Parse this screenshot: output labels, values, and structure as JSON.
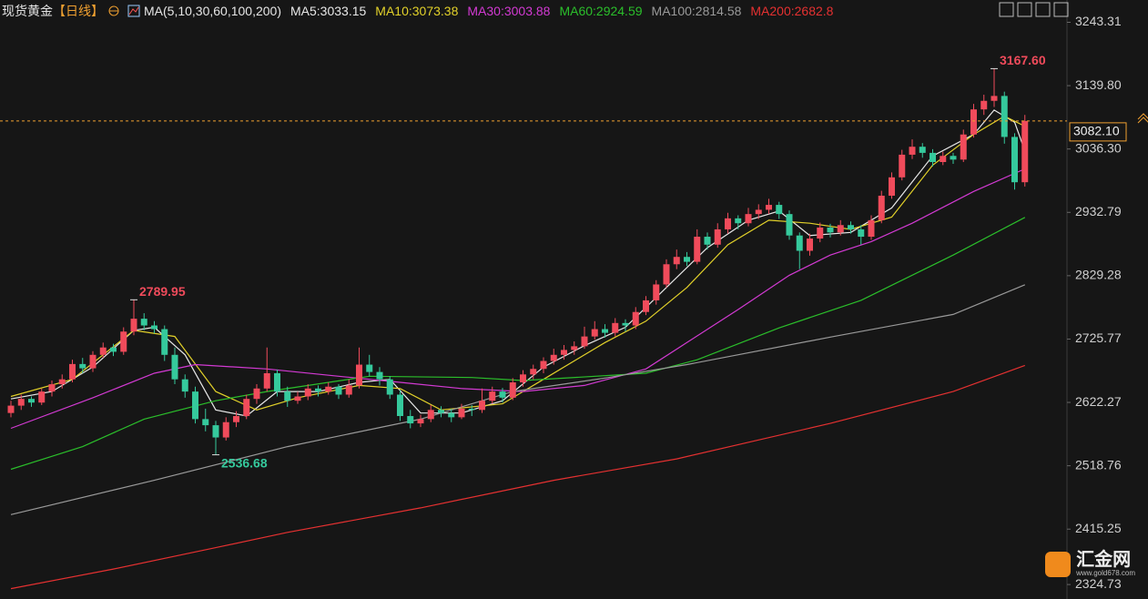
{
  "chart_data": {
    "type": "candlestick",
    "title": "现货黄金",
    "subtitle": "【日线】",
    "indicator": "MA(5,10,30,60,100,200)",
    "watermark": "汇金网",
    "watermark_url": "www.gold678.com",
    "up_color": "#f04b5b",
    "down_color": "#35c99c",
    "ylim": [
      2310,
      3250
    ],
    "yticks": [
      3243.31,
      {
        "value": 3139.8,
        "label": "3139.80"
      },
      {
        "value": 3036.3,
        "label": "3036.30"
      },
      2932.79,
      2829.28,
      2725.77,
      2622.27,
      2518.76,
      2415.25,
      2324.73
    ],
    "last_price": {
      "value": 3082.1,
      "label": "3082.10"
    },
    "annotations": [
      "2789.95",
      "2536.68",
      "3167.60"
    ],
    "ohlc": [
      [
        2605,
        2625,
        2598,
        2617
      ],
      [
        2617,
        2635,
        2610,
        2628
      ],
      [
        2628,
        2632,
        2615,
        2622
      ],
      [
        2622,
        2645,
        2618,
        2640
      ],
      [
        2640,
        2658,
        2632,
        2652
      ],
      [
        2652,
        2668,
        2645,
        2660
      ],
      [
        2660,
        2692,
        2655,
        2685
      ],
      [
        2685,
        2695,
        2670,
        2678
      ],
      [
        2678,
        2706,
        2672,
        2700
      ],
      [
        2700,
        2720,
        2695,
        2712
      ],
      [
        2712,
        2718,
        2698,
        2705
      ],
      [
        2705,
        2745,
        2700,
        2738
      ],
      [
        2738,
        2789.95,
        2732,
        2759
      ],
      [
        2759,
        2768,
        2740,
        2748
      ],
      [
        2748,
        2755,
        2735,
        2742
      ],
      [
        2742,
        2748,
        2690,
        2700
      ],
      [
        2700,
        2712,
        2652,
        2660
      ],
      [
        2660,
        2668,
        2630,
        2640
      ],
      [
        2640,
        2648,
        2588,
        2595
      ],
      [
        2595,
        2612,
        2575,
        2585
      ],
      [
        2585,
        2592,
        2536.68,
        2565
      ],
      [
        2565,
        2598,
        2560,
        2590
      ],
      [
        2590,
        2608,
        2582,
        2600
      ],
      [
        2600,
        2635,
        2595,
        2628
      ],
      [
        2628,
        2652,
        2620,
        2645
      ],
      [
        2645,
        2712,
        2640,
        2670
      ],
      [
        2670,
        2676,
        2632,
        2640
      ],
      [
        2640,
        2648,
        2615,
        2625
      ],
      [
        2625,
        2640,
        2620,
        2632
      ],
      [
        2632,
        2652,
        2626,
        2645
      ],
      [
        2645,
        2650,
        2632,
        2640
      ],
      [
        2640,
        2655,
        2635,
        2648
      ],
      [
        2648,
        2652,
        2628,
        2635
      ],
      [
        2635,
        2660,
        2630,
        2650
      ],
      [
        2650,
        2712,
        2645,
        2684
      ],
      [
        2684,
        2700,
        2665,
        2672
      ],
      [
        2672,
        2680,
        2650,
        2660
      ],
      [
        2660,
        2665,
        2628,
        2635
      ],
      [
        2635,
        2642,
        2592,
        2600
      ],
      [
        2600,
        2610,
        2580,
        2588
      ],
      [
        2588,
        2602,
        2582,
        2595
      ],
      [
        2595,
        2618,
        2590,
        2610
      ],
      [
        2610,
        2616,
        2598,
        2605
      ],
      [
        2605,
        2612,
        2590,
        2598
      ],
      [
        2598,
        2620,
        2595,
        2612
      ],
      [
        2612,
        2618,
        2600,
        2610
      ],
      [
        2610,
        2645,
        2605,
        2625
      ],
      [
        2625,
        2648,
        2620,
        2640
      ],
      [
        2640,
        2646,
        2622,
        2630
      ],
      [
        2630,
        2662,
        2626,
        2655
      ],
      [
        2655,
        2675,
        2648,
        2668
      ],
      [
        2668,
        2684,
        2660,
        2677
      ],
      [
        2677,
        2696,
        2670,
        2690
      ],
      [
        2690,
        2710,
        2684,
        2700
      ],
      [
        2700,
        2716,
        2692,
        2708
      ],
      [
        2708,
        2722,
        2700,
        2714
      ],
      [
        2714,
        2746,
        2710,
        2730
      ],
      [
        2730,
        2755,
        2725,
        2742
      ],
      [
        2742,
        2750,
        2728,
        2736
      ],
      [
        2736,
        2760,
        2730,
        2752
      ],
      [
        2752,
        2758,
        2738,
        2748
      ],
      [
        2748,
        2778,
        2742,
        2770
      ],
      [
        2770,
        2796,
        2765,
        2789
      ],
      [
        2789,
        2822,
        2782,
        2815
      ],
      [
        2815,
        2856,
        2810,
        2848
      ],
      [
        2848,
        2872,
        2840,
        2860
      ],
      [
        2860,
        2868,
        2845,
        2852
      ],
      [
        2852,
        2905,
        2848,
        2893
      ],
      [
        2893,
        2900,
        2872,
        2880
      ],
      [
        2880,
        2915,
        2875,
        2905
      ],
      [
        2905,
        2932,
        2898,
        2923
      ],
      [
        2923,
        2928,
        2905,
        2915
      ],
      [
        2915,
        2940,
        2910,
        2930
      ],
      [
        2930,
        2946,
        2922,
        2937
      ],
      [
        2937,
        2955,
        2930,
        2945
      ],
      [
        2945,
        2950,
        2922,
        2930
      ],
      [
        2930,
        2936,
        2888,
        2895
      ],
      [
        2895,
        2900,
        2840,
        2870
      ],
      [
        2870,
        2898,
        2862,
        2890
      ],
      [
        2890,
        2916,
        2884,
        2908
      ],
      [
        2908,
        2914,
        2892,
        2900
      ],
      [
        2900,
        2920,
        2895,
        2912
      ],
      [
        2912,
        2918,
        2898,
        2905
      ],
      [
        2905,
        2912,
        2880,
        2893
      ],
      [
        2893,
        2928,
        2888,
        2920
      ],
      [
        2920,
        2968,
        2915,
        2960
      ],
      [
        2960,
        2998,
        2955,
        2990
      ],
      [
        2990,
        3035,
        2985,
        3027
      ],
      [
        3027,
        3052,
        3020,
        3040
      ],
      [
        3040,
        3046,
        3022,
        3030
      ],
      [
        3030,
        3036,
        3008,
        3015
      ],
      [
        3015,
        3032,
        3010,
        3025
      ],
      [
        3025,
        3030,
        3012,
        3019
      ],
      [
        3019,
        3068,
        3015,
        3060
      ],
      [
        3060,
        3110,
        3055,
        3101
      ],
      [
        3101,
        3125,
        3092,
        3115
      ],
      [
        3115,
        3167.6,
        3105,
        3123
      ],
      [
        3123,
        3130,
        3045,
        3056
      ],
      [
        3056,
        3062,
        2970,
        2982
      ],
      [
        2982,
        3092,
        2975,
        3082.1
      ]
    ],
    "series": [
      {
        "name": "MA5:3033.15",
        "color": "#e8e8e8",
        "x": [
          0,
          4,
          8,
          12,
          14,
          17,
          20,
          23,
          26,
          30,
          34,
          37,
          40,
          44,
          48,
          52,
          56,
          60,
          64,
          68,
          72,
          75,
          78,
          82,
          86,
          90,
          94,
          96,
          98,
          99
        ],
        "values": [
          2628,
          2640,
          2680,
          2740,
          2745,
          2700,
          2610,
          2600,
          2640,
          2640,
          2655,
          2660,
          2605,
          2605,
          2625,
          2680,
          2715,
          2745,
          2810,
          2875,
          2920,
          2935,
          2895,
          2900,
          2940,
          3025,
          3060,
          3100,
          3080,
          3033.15
        ]
      },
      {
        "name": "MA10:3073.38",
        "color": "#e2d12a",
        "x": [
          0,
          6,
          12,
          16,
          20,
          24,
          28,
          34,
          38,
          42,
          48,
          52,
          58,
          62,
          66,
          70,
          74,
          78,
          82,
          86,
          90,
          94,
          97,
          99
        ],
        "values": [
          2632,
          2660,
          2740,
          2730,
          2640,
          2610,
          2630,
          2650,
          2645,
          2610,
          2620,
          2660,
          2720,
          2755,
          2810,
          2880,
          2920,
          2915,
          2905,
          2925,
          3010,
          3060,
          3090,
          3073.38
        ]
      },
      {
        "name": "MA30:3003.88",
        "color": "#d33ad3",
        "x": [
          0,
          8,
          14,
          18,
          25,
          32,
          38,
          44,
          50,
          56,
          62,
          66,
          71,
          76,
          80,
          84,
          88,
          94,
          99
        ],
        "values": [
          2580,
          2630,
          2670,
          2684,
          2677,
          2665,
          2655,
          2645,
          2640,
          2650,
          2677,
          2720,
          2774,
          2830,
          2863,
          2885,
          2915,
          2967,
          3003.88
        ]
      },
      {
        "name": "MA60:2924.59",
        "color": "#2bbf2b",
        "x": [
          0,
          7,
          13,
          20,
          25,
          35,
          45,
          50,
          62,
          67,
          75,
          83,
          92,
          99
        ],
        "values": [
          2513,
          2550,
          2595,
          2625,
          2640,
          2665,
          2663,
          2658,
          2670,
          2692,
          2744,
          2789,
          2863,
          2924.59
        ]
      },
      {
        "name": "MA100:2814.58",
        "color": "#9a9a9a",
        "x": [
          0,
          14,
          27,
          40,
          49,
          58,
          66,
          80,
          92,
          99
        ],
        "values": [
          2439,
          2495,
          2550,
          2595,
          2640,
          2662,
          2684,
          2729,
          2766,
          2814.58
        ]
      },
      {
        "name": "MA200:2682.8",
        "color": "#e53131",
        "x": [
          0,
          10,
          20,
          27,
          40,
          53,
          65,
          80,
          92,
          99
        ],
        "values": [
          2318,
          2350,
          2385,
          2410,
          2450,
          2495,
          2530,
          2588,
          2640,
          2682.8
        ]
      }
    ]
  }
}
